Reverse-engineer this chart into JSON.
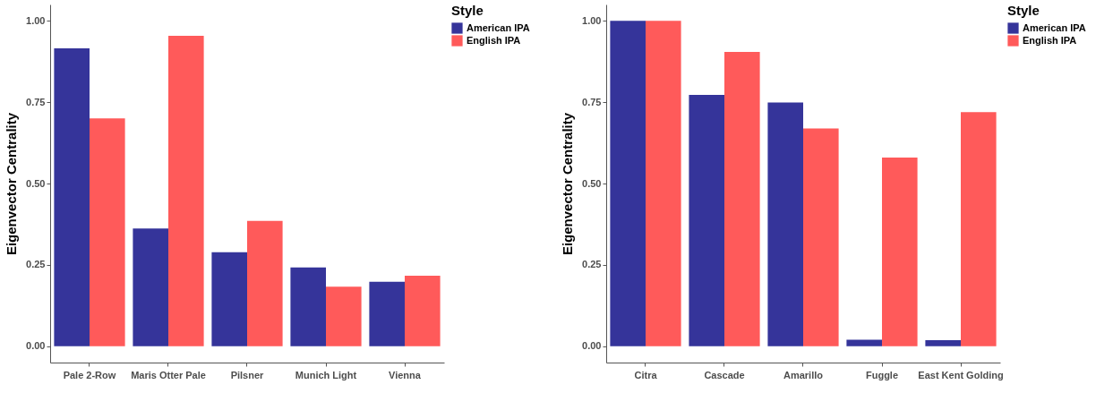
{
  "chart_data": [
    {
      "type": "bar",
      "ylabel": "Eigenvector Centrality",
      "legend_title": "Style",
      "legend": "right",
      "grid": false,
      "categories": [
        "Pale 2-Row",
        "Maris Otter Pale",
        "Pilsner",
        "Munich Light",
        "Vienna"
      ],
      "series": [
        {
          "name": "American IPA",
          "color": "#35349a",
          "values": [
            0.915,
            0.362,
            0.289,
            0.242,
            0.198
          ]
        },
        {
          "name": "English IPA",
          "color": "#ff5a5a",
          "values": [
            0.7,
            0.954,
            0.385,
            0.183,
            0.217
          ]
        }
      ],
      "ylim": [
        -0.05,
        1.05
      ],
      "yticks": [
        {
          "value": 0,
          "label": "0.00"
        },
        {
          "value": 0.25,
          "label": "0.25"
        },
        {
          "value": 0.5,
          "label": "0.50"
        },
        {
          "value": 0.75,
          "label": "0.75"
        },
        {
          "value": 1,
          "label": "1.00"
        }
      ]
    },
    {
      "type": "bar",
      "ylabel": "Eigenvector Centrality",
      "legend_title": "Style",
      "legend": "right",
      "grid": false,
      "categories": [
        "Citra",
        "Cascade",
        "Amarillo",
        "Fuggle",
        "East Kent Golding"
      ],
      "series": [
        {
          "name": "American IPA",
          "color": "#35349a",
          "values": [
            1.0,
            0.772,
            0.749,
            0.02,
            0.019
          ]
        },
        {
          "name": "English IPA",
          "color": "#ff5a5a",
          "values": [
            1.0,
            0.904,
            0.669,
            0.58,
            0.719
          ]
        }
      ],
      "ylim": [
        -0.05,
        1.05
      ],
      "yticks": [
        {
          "value": 0,
          "label": "0.00"
        },
        {
          "value": 0.25,
          "label": "0.25"
        },
        {
          "value": 0.5,
          "label": "0.50"
        },
        {
          "value": 0.75,
          "label": "0.75"
        },
        {
          "value": 1,
          "label": "1.00"
        }
      ]
    }
  ]
}
